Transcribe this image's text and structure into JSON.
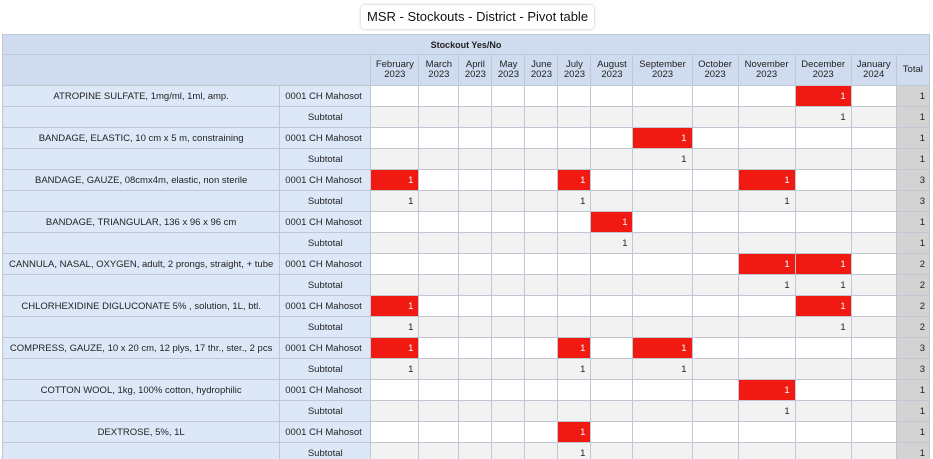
{
  "title": "MSR - Stockouts - District - Pivot table",
  "pivot": {
    "group_header": "Stockout Yes/No",
    "months": [
      [
        "February",
        "2023"
      ],
      [
        "March",
        "2023"
      ],
      [
        "April",
        "2023"
      ],
      [
        "May",
        "2023"
      ],
      [
        "June",
        "2023"
      ],
      [
        "July",
        "2023"
      ],
      [
        "August",
        "2023"
      ],
      [
        "September",
        "2023"
      ],
      [
        "October",
        "2023"
      ],
      [
        "November",
        "2023"
      ],
      [
        "December",
        "2023"
      ],
      [
        "January",
        "2024"
      ]
    ],
    "total_label": "Total",
    "subtotal_label": "Subtotal",
    "highlight_color": "#f01a12",
    "rows": [
      {
        "item": "ATROPINE SULFATE, 1mg/ml, 1ml, amp.",
        "location": "0001 CH Mahosot",
        "vals": [
          "",
          "",
          "",
          "",
          "",
          "",
          "",
          "",
          "",
          "",
          "1",
          ""
        ],
        "total": "1",
        "sub": [
          "",
          "",
          "",
          "",
          "",
          "",
          "",
          "",
          "",
          "",
          "1",
          ""
        ],
        "subtotal": "1"
      },
      {
        "item": "BANDAGE, ELASTIC, 10 cm x 5 m, constraining",
        "location": "0001 CH Mahosot",
        "vals": [
          "",
          "",
          "",
          "",
          "",
          "",
          "",
          "1",
          "",
          "",
          "",
          ""
        ],
        "total": "1",
        "sub": [
          "",
          "",
          "",
          "",
          "",
          "",
          "",
          "1",
          "",
          "",
          "",
          ""
        ],
        "subtotal": "1"
      },
      {
        "item": "BANDAGE, GAUZE, 08cmx4m, elastic, non sterile",
        "location": "0001 CH Mahosot",
        "vals": [
          "1",
          "",
          "",
          "",
          "",
          "1",
          "",
          "",
          "",
          "1",
          "",
          ""
        ],
        "total": "3",
        "sub": [
          "1",
          "",
          "",
          "",
          "",
          "1",
          "",
          "",
          "",
          "1",
          "",
          ""
        ],
        "subtotal": "3"
      },
      {
        "item": "BANDAGE, TRIANGULAR, 136 x 96 x 96 cm",
        "location": "0001 CH Mahosot",
        "vals": [
          "",
          "",
          "",
          "",
          "",
          "",
          "1",
          "",
          "",
          "",
          "",
          ""
        ],
        "total": "1",
        "sub": [
          "",
          "",
          "",
          "",
          "",
          "",
          "1",
          "",
          "",
          "",
          "",
          ""
        ],
        "subtotal": "1"
      },
      {
        "item": "CANNULA, NASAL, OXYGEN, adult, 2 prongs, straight, + tube",
        "location": "0001 CH Mahosot",
        "vals": [
          "",
          "",
          "",
          "",
          "",
          "",
          "",
          "",
          "",
          "1",
          "1",
          ""
        ],
        "total": "2",
        "sub": [
          "",
          "",
          "",
          "",
          "",
          "",
          "",
          "",
          "",
          "1",
          "1",
          ""
        ],
        "subtotal": "2"
      },
      {
        "item": "CHLORHEXIDINE DIGLUCONATE 5% , solution, 1L, btl.",
        "location": "0001 CH Mahosot",
        "vals": [
          "1",
          "",
          "",
          "",
          "",
          "",
          "",
          "",
          "",
          "",
          "1",
          ""
        ],
        "total": "2",
        "sub": [
          "1",
          "",
          "",
          "",
          "",
          "",
          "",
          "",
          "",
          "",
          "1",
          ""
        ],
        "subtotal": "2"
      },
      {
        "item": "COMPRESS, GAUZE, 10 x 20 cm, 12 plys, 17 thr., ster., 2 pcs",
        "location": "0001 CH Mahosot",
        "vals": [
          "1",
          "",
          "",
          "",
          "",
          "1",
          "",
          "1",
          "",
          "",
          "",
          ""
        ],
        "total": "3",
        "sub": [
          "1",
          "",
          "",
          "",
          "",
          "1",
          "",
          "1",
          "",
          "",
          "",
          ""
        ],
        "subtotal": "3"
      },
      {
        "item": "COTTON WOOL, 1kg, 100% cotton, hydrophilic",
        "location": "0001 CH Mahosot",
        "vals": [
          "",
          "",
          "",
          "",
          "",
          "",
          "",
          "",
          "",
          "1",
          "",
          ""
        ],
        "total": "1",
        "sub": [
          "",
          "",
          "",
          "",
          "",
          "",
          "",
          "",
          "",
          "1",
          "",
          ""
        ],
        "subtotal": "1"
      },
      {
        "item": "DEXTROSE, 5%, 1L",
        "location": "0001 CH Mahosot",
        "vals": [
          "",
          "",
          "",
          "",
          "",
          "1",
          "",
          "",
          "",
          "",
          "",
          ""
        ],
        "total": "1",
        "sub": [
          "",
          "",
          "",
          "",
          "",
          "1",
          "",
          "",
          "",
          "",
          "",
          ""
        ],
        "subtotal": "1"
      }
    ]
  }
}
